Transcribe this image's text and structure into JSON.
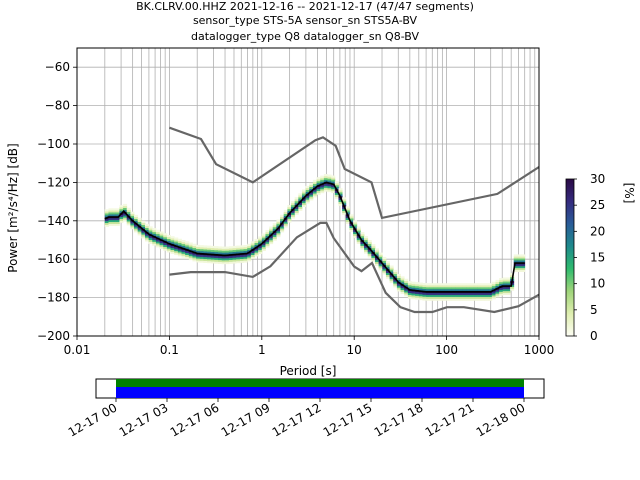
{
  "chart_data": {
    "type": "heatmap",
    "title_lines": [
      "BK.CLRV.00.HHZ   2021-12-16 -- 2021-12-17  (47/47 segments)",
      "sensor_type STS-5A sensor_sn STS5A-BV",
      "datalogger_type Q8 datalogger_sn Q8-BV"
    ],
    "xlabel": "Period [s]",
    "ylabel": "Power [m²/s⁴/Hz] [dB]",
    "x_scale": "log",
    "xlim": [
      0.01,
      1000
    ],
    "ylim": [
      -200,
      -50
    ],
    "x_ticks": [
      {
        "v": 0.01,
        "label": "0.01"
      },
      {
        "v": 0.1,
        "label": "0.1"
      },
      {
        "v": 1,
        "label": "1"
      },
      {
        "v": 10,
        "label": "10"
      },
      {
        "v": 100,
        "label": "100"
      },
      {
        "v": 1000,
        "label": "1000"
      }
    ],
    "y_ticks": [
      {
        "v": -60,
        "label": "−60"
      },
      {
        "v": -80,
        "label": "−80"
      },
      {
        "v": -100,
        "label": "−100"
      },
      {
        "v": -120,
        "label": "−120"
      },
      {
        "v": -140,
        "label": "−140"
      },
      {
        "v": -160,
        "label": "−160"
      },
      {
        "v": -180,
        "label": "−180"
      },
      {
        "v": -200,
        "label": "−200"
      }
    ],
    "grid": true,
    "colorbar": {
      "label": "[%]",
      "range": [
        0,
        30
      ],
      "ticks": [
        {
          "v": 0,
          "label": "0"
        },
        {
          "v": 5,
          "label": "5"
        },
        {
          "v": 10,
          "label": "10"
        },
        {
          "v": 15,
          "label": "15"
        },
        {
          "v": 20,
          "label": "20"
        },
        {
          "v": 25,
          "label": "25"
        },
        {
          "v": 30,
          "label": "30"
        }
      ],
      "stops": [
        "#fdfdf4",
        "#dfeeb0",
        "#9fd47a",
        "#2fbb6e",
        "#1e8a8c",
        "#2a5c98",
        "#352b7e",
        "#2a0a45"
      ]
    },
    "noise_models": [
      {
        "x": [
          0.1,
          0.22,
          0.32,
          0.8,
          3.8,
          4.6,
          6.3,
          7.9,
          15.4,
          20,
          354.8,
          1000
        ],
        "y": [
          -91.5,
          -97.4,
          -110.5,
          -120,
          -98,
          -96.5,
          -101,
          -113,
          -120,
          -138.5,
          -126,
          -112
        ]
      },
      {
        "x": [
          0.1,
          0.17,
          0.4,
          0.8,
          1.24,
          2.4,
          4.3,
          5,
          6,
          10,
          12,
          15.6,
          21.9,
          31.6,
          45,
          70,
          101,
          154,
          328,
          600,
          1000
        ],
        "y": [
          -168,
          -166.7,
          -166.7,
          -169.2,
          -163.7,
          -148.6,
          -141.1,
          -141.1,
          -149,
          -163.8,
          -166.2,
          -162,
          -177.5,
          -185,
          -187.5,
          -187.5,
          -185,
          -185,
          -187.5,
          -184.5,
          -178.5
        ]
      }
    ],
    "mode_line": {
      "x": [
        0.02,
        0.022,
        0.028,
        0.032,
        0.04,
        0.06,
        0.1,
        0.2,
        0.4,
        0.7,
        1,
        1.5,
        2,
        3,
        4,
        5,
        6,
        7,
        9,
        12,
        15,
        20,
        30,
        40,
        60,
        100,
        200,
        300,
        400,
        500,
        550,
        700
      ],
      "y": [
        -139,
        -138,
        -138,
        -135,
        -140,
        -147,
        -152,
        -157,
        -158,
        -157,
        -152,
        -144,
        -136,
        -127,
        -122,
        -120,
        -121,
        -127,
        -140,
        -150,
        -155,
        -162,
        -172,
        -176,
        -177,
        -177,
        -177,
        -177,
        -174,
        -174,
        -162,
        -162
      ]
    }
  },
  "timeline": {
    "tick_labels": [
      "12-17 00",
      "12-17 03",
      "12-17 06",
      "12-17 09",
      "12-17 12",
      "12-17 15",
      "12-17 18",
      "12-17 21",
      "12-18 00"
    ],
    "bar_colors": {
      "top": "#008000",
      "bottom": "#0000ff"
    }
  }
}
